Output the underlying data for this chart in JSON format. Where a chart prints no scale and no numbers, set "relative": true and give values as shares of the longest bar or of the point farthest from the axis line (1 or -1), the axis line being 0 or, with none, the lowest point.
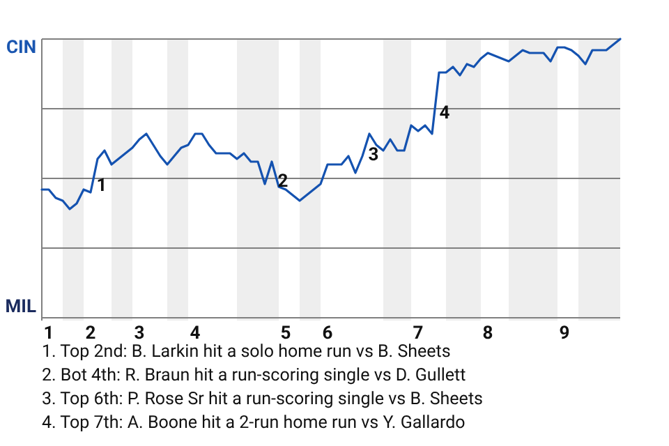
{
  "chart_data": {
    "type": "line",
    "relative": true,
    "categories": [
      null,
      "1",
      null,
      null,
      null,
      null,
      null,
      "2",
      null,
      null,
      null,
      null,
      null,
      null,
      "3",
      null,
      null,
      null,
      null,
      null,
      null,
      null,
      "4",
      null,
      null,
      null,
      null,
      null,
      null,
      null,
      null,
      null,
      null,
      null,
      null,
      "5",
      null,
      null,
      null,
      null,
      null,
      "6",
      null,
      null,
      null,
      null,
      null,
      null,
      null,
      null,
      null,
      null,
      null,
      null,
      "7",
      null,
      null,
      null,
      null,
      null,
      null,
      null,
      null,
      null,
      "8",
      null,
      null,
      null,
      null,
      null,
      null,
      null,
      null,
      null,
      null,
      "9",
      null,
      null,
      null,
      null,
      null,
      null,
      null,
      null
    ],
    "marker": "none",
    "line_style": "solid",
    "ref_lines": [
      {
        "axis": "y",
        "value": 0.25,
        "color": "#808080"
      },
      {
        "axis": "y",
        "value": 0.5,
        "color": "#808080"
      },
      {
        "axis": "y",
        "value": 0.75,
        "color": "#808080"
      },
      {
        "axis": "y",
        "value": 1,
        "color": "#808080"
      }
    ],
    "series": [
      {
        "color": "#1452b0",
        "values": [
          0.46,
          0.46,
          0.43,
          0.42,
          0.39,
          0.41,
          0.46,
          0.45,
          0.57,
          0.6,
          0.55,
          0.57,
          0.59,
          0.61,
          0.64,
          0.66,
          0.62,
          0.58,
          0.55,
          0.58,
          0.61,
          0.62,
          0.66,
          0.66,
          0.62,
          0.59,
          0.59,
          0.59,
          0.57,
          0.59,
          0.56,
          0.56,
          0.48,
          0.56,
          0.47,
          0.46,
          0.44,
          0.42,
          0.44,
          0.46,
          0.48,
          0.55,
          0.55,
          0.55,
          0.58,
          0.52,
          0.58,
          0.66,
          0.62,
          0.6,
          0.64,
          0.6,
          0.6,
          0.69,
          0.67,
          0.69,
          0.66,
          0.88,
          0.88,
          0.9,
          0.87,
          0.91,
          0.9,
          0.93,
          0.95,
          0.94,
          0.93,
          0.92,
          0.94,
          0.96,
          0.95,
          0.95,
          0.95,
          0.92,
          0.97,
          0.97,
          0.96,
          0.94,
          0.91,
          0.96,
          0.96,
          0.96,
          0.98,
          1
        ]
      }
    ],
    "annotations": [
      "1",
      "2",
      "3",
      "4",
      "1. Top 2nd: B. Larkin hit a solo home run vs B. Sheets",
      "2. Bot 4th: R. Braun hit a run-scoring single vs D. Gullett",
      "3. Top 6th: P. Rose Sr hit a run-scoring single vs B. Sheets",
      "4. Top 7th: A. Boone hit a 2-run home run vs Y. Gallardo",
      "CIN",
      "MIL"
    ]
  }
}
